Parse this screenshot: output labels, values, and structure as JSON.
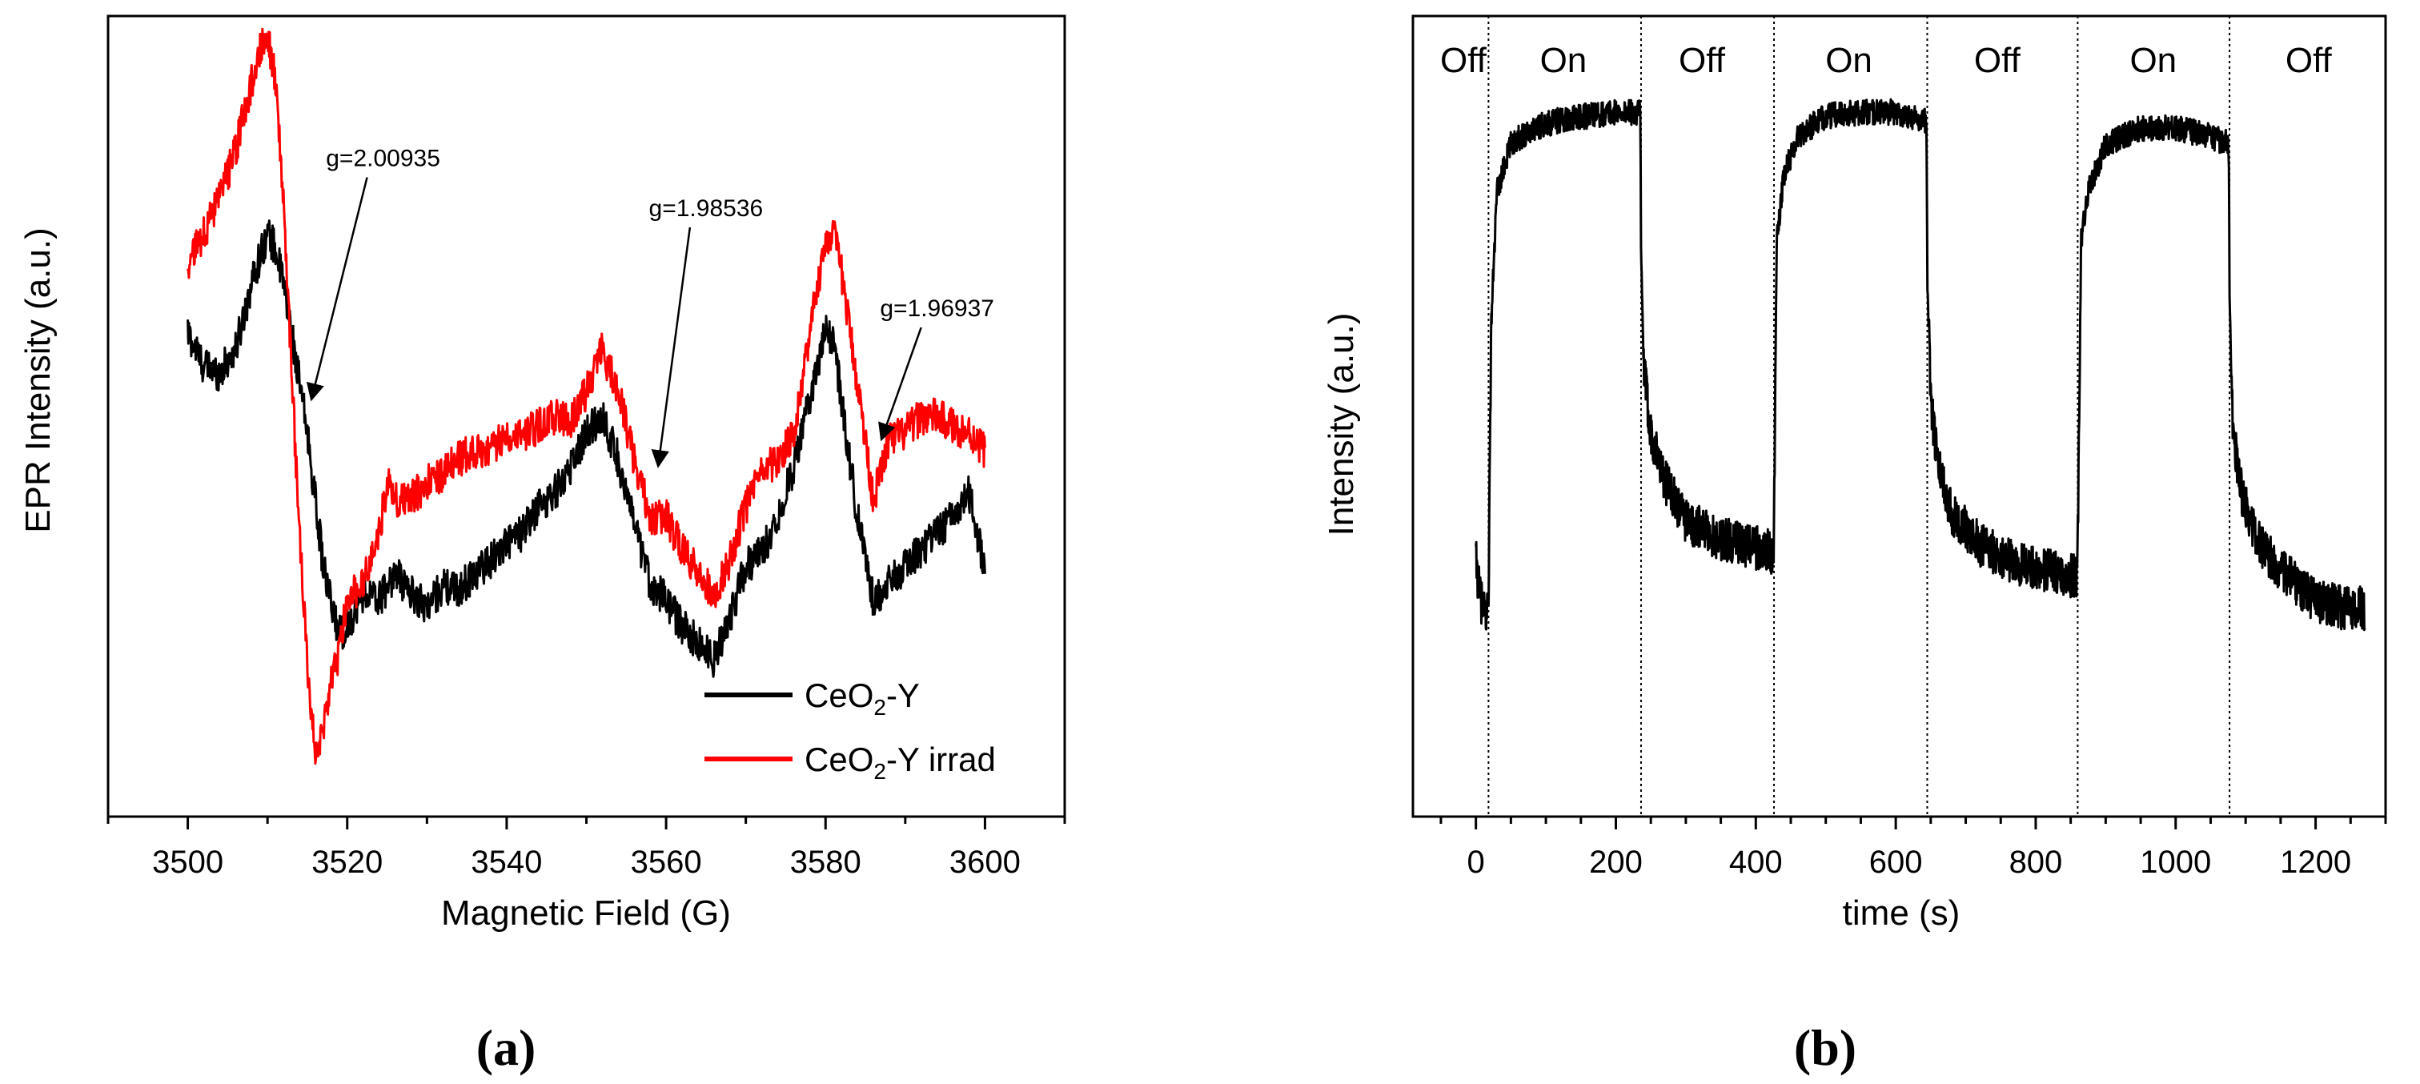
{
  "chart_data": [
    {
      "id": "a",
      "type": "line",
      "panel_label": "(a)",
      "title": "",
      "xlabel": "Magnetic Field  (G)",
      "ylabel": "EPR Intensity  (a.u.)",
      "xlim": [
        3490,
        3610
      ],
      "ylim": [
        -1.25,
        1.15
      ],
      "xticks": [
        3500,
        3520,
        3540,
        3560,
        3580,
        3600
      ],
      "yticks_shown": false,
      "grid": false,
      "legend_position": "bottom-right",
      "series": [
        {
          "name": "CeO2-Y",
          "legend_main": "CeO",
          "legend_sub": "2",
          "legend_rest": "-Y",
          "color": "#000000",
          "x": [
            3500,
            3502,
            3504,
            3506,
            3508,
            3510,
            3511,
            3512,
            3513,
            3514,
            3515,
            3516,
            3517,
            3518,
            3519,
            3520,
            3522,
            3524,
            3526,
            3528,
            3530,
            3532,
            3534,
            3536,
            3538,
            3540,
            3542,
            3544,
            3546,
            3548,
            3550,
            3552,
            3554,
            3556,
            3558,
            3560,
            3562,
            3564,
            3566,
            3568,
            3570,
            3572,
            3574,
            3576,
            3578,
            3580,
            3581,
            3582,
            3584,
            3586,
            3588,
            3590,
            3592,
            3594,
            3596,
            3598,
            3599,
            3600
          ],
          "y": [
            0.2,
            0.1,
            0.08,
            0.15,
            0.35,
            0.5,
            0.45,
            0.35,
            0.2,
            0.05,
            -0.1,
            -0.3,
            -0.5,
            -0.62,
            -0.7,
            -0.68,
            -0.58,
            -0.6,
            -0.52,
            -0.58,
            -0.62,
            -0.56,
            -0.57,
            -0.52,
            -0.48,
            -0.43,
            -0.4,
            -0.32,
            -0.28,
            -0.2,
            -0.1,
            -0.05,
            -0.18,
            -0.38,
            -0.55,
            -0.6,
            -0.68,
            -0.73,
            -0.78,
            -0.65,
            -0.5,
            -0.46,
            -0.35,
            -0.2,
            0.0,
            0.2,
            0.18,
            0.0,
            -0.35,
            -0.6,
            -0.55,
            -0.5,
            -0.45,
            -0.4,
            -0.35,
            -0.28,
            -0.4,
            -0.5
          ]
        },
        {
          "name": "CeO2-Y irrad",
          "legend_main": "CeO",
          "legend_sub": "2",
          "legend_rest": "-Y irrad",
          "color": "#ff0000",
          "x": [
            3500,
            3502,
            3504,
            3506,
            3508,
            3509,
            3510,
            3511,
            3512,
            3513,
            3514,
            3515,
            3516,
            3517,
            3518,
            3519,
            3520,
            3522,
            3524,
            3525,
            3526,
            3528,
            3530,
            3532,
            3534,
            3536,
            3538,
            3540,
            3542,
            3544,
            3546,
            3548,
            3550,
            3551,
            3552,
            3554,
            3556,
            3558,
            3560,
            3562,
            3564,
            3566,
            3568,
            3570,
            3572,
            3574,
            3576,
            3578,
            3580,
            3581,
            3582,
            3584,
            3586,
            3588,
            3590,
            3592,
            3594,
            3596,
            3598,
            3600
          ],
          "y": [
            0.4,
            0.5,
            0.6,
            0.75,
            0.95,
            1.05,
            1.1,
            0.95,
            0.6,
            0.1,
            -0.4,
            -0.8,
            -1.05,
            -1.0,
            -0.85,
            -0.75,
            -0.6,
            -0.55,
            -0.4,
            -0.25,
            -0.3,
            -0.3,
            -0.25,
            -0.22,
            -0.18,
            -0.15,
            -0.15,
            -0.1,
            -0.1,
            -0.08,
            -0.05,
            -0.06,
            0.02,
            0.1,
            0.15,
            0.02,
            -0.18,
            -0.35,
            -0.35,
            -0.45,
            -0.52,
            -0.58,
            -0.48,
            -0.32,
            -0.22,
            -0.18,
            -0.1,
            0.2,
            0.48,
            0.5,
            0.38,
            0.05,
            -0.3,
            -0.12,
            -0.1,
            -0.05,
            -0.05,
            -0.08,
            -0.1,
            -0.15
          ]
        }
      ],
      "annotations": [
        {
          "text": "g=2.00935",
          "x": 3515.5,
          "y": 0.0,
          "text_x": 3524.5,
          "text_y": 0.7
        },
        {
          "text": "g=1.98536",
          "x": 3559,
          "y": -0.2,
          "text_x": 3565,
          "text_y": 0.55
        },
        {
          "text": "g=1.96937",
          "x": 3587,
          "y": -0.12,
          "text_x": 3594,
          "text_y": 0.25
        }
      ]
    },
    {
      "id": "b",
      "type": "line",
      "panel_label": "(b)",
      "title": "",
      "xlabel": "time  (s)",
      "ylabel": "Intensity  (a.u.)",
      "xlim": [
        -90,
        1300
      ],
      "ylim": [
        0,
        100
      ],
      "xticks": [
        0,
        200,
        400,
        600,
        800,
        1000,
        1200
      ],
      "yticks_shown": false,
      "grid": false,
      "color": "#000000",
      "dividers": [
        18,
        236,
        426,
        645,
        860,
        1077
      ],
      "phases": [
        {
          "label": "Off",
          "x": -18
        },
        {
          "label": "On",
          "x": 125
        },
        {
          "label": "Off",
          "x": 323
        },
        {
          "label": "On",
          "x": 533
        },
        {
          "label": "Off",
          "x": 745
        },
        {
          "label": "On",
          "x": 968
        },
        {
          "label": "Off",
          "x": 1190
        }
      ],
      "x": [
        0,
        5,
        10,
        15,
        18,
        22,
        30,
        50,
        80,
        120,
        160,
        200,
        235,
        236,
        240,
        250,
        270,
        300,
        340,
        380,
        425,
        426,
        430,
        440,
        460,
        500,
        550,
        600,
        644,
        645,
        650,
        660,
        680,
        720,
        760,
        800,
        859,
        860,
        865,
        875,
        900,
        950,
        1000,
        1050,
        1076,
        1077,
        1082,
        1095,
        1120,
        1160,
        1200,
        1240,
        1270
      ],
      "y": [
        32,
        28,
        26,
        25,
        28,
        62,
        78,
        84,
        86,
        87,
        87.5,
        88,
        88,
        70,
        56,
        48,
        42,
        37,
        35,
        34,
        33,
        36,
        72,
        80,
        85,
        87.5,
        88,
        88,
        87,
        68,
        52,
        44,
        38,
        34,
        32,
        31,
        30,
        34,
        72,
        78,
        84,
        86,
        86,
        85,
        84,
        66,
        48,
        40,
        34,
        30,
        27,
        26,
        26
      ]
    }
  ]
}
